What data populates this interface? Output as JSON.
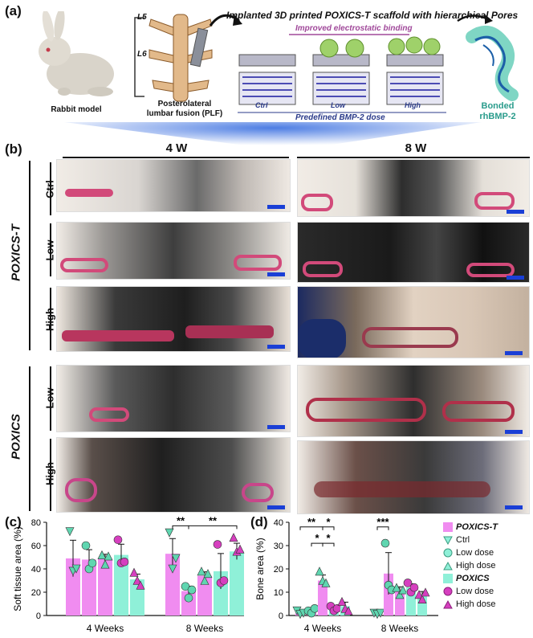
{
  "panel_a": {
    "label": "(a)",
    "title": "Implanted 3D printed POXICS-T scaffold with hierarchical Pores",
    "electrostatic": "Improved electrostatic binding",
    "rabbit_caption": "Rabbit model",
    "plf_caption_line1": "Posterolateral",
    "plf_caption_line2": "lumbar fusion (PLF)",
    "vertebra_l5": "L5",
    "vertebra_l6": "L6",
    "doses": [
      "Ctrl",
      "Low",
      "High"
    ],
    "dose_caption": "Predefined BMP-2 dose",
    "bmp_line1": "Bonded",
    "bmp_line2": "rhBMP-2"
  },
  "panel_b": {
    "label": "(b)",
    "weeks": [
      "4 W",
      "8 W"
    ],
    "groups": [
      "POXICS-T",
      "POXICS"
    ],
    "rows_poxics_t": [
      "Ctrl",
      "Low",
      "High"
    ],
    "rows_poxics": [
      "Low",
      "High"
    ]
  },
  "panel_c": {
    "label": "(c)"
  },
  "panel_d": {
    "label": "(d)"
  },
  "legend": {
    "group1": "POXICS-T",
    "group1_items": [
      "Ctrl",
      "Low dose",
      "High dose"
    ],
    "group2": "POXICS",
    "group2_items": [
      "Low dose",
      "High dose"
    ]
  },
  "colors": {
    "pink": "#f08cf0",
    "teal": "#8ff0d8",
    "pink_marker": "#d63fbf",
    "teal_marker": "#5fd6b0",
    "scale_bar": "#1a3fd6"
  },
  "chart_data": [
    {
      "type": "bar",
      "title": "",
      "xlabel": "",
      "ylabel": "Soft tissue area (%)",
      "ylim": [
        0,
        80
      ],
      "yticks": [
        "0",
        "20",
        "40",
        "60",
        "80"
      ],
      "categories": [
        "4 Weeks",
        "8 Weeks"
      ],
      "series": [
        {
          "name": "POXICS-T Ctrl",
          "values": [
            49,
            53
          ],
          "points": [
            [
              72,
              38,
              40
            ],
            [
              71,
              40,
              49
            ]
          ]
        },
        {
          "name": "POXICS-T Low dose",
          "values": [
            48,
            21
          ],
          "points": [
            [
              60,
              40,
              45
            ],
            [
              25,
              15,
              22
            ]
          ]
        },
        {
          "name": "POXICS-T High dose",
          "values": [
            49,
            34
          ],
          "points": [
            [
              52,
              44,
              51
            ],
            [
              38,
              30,
              36
            ]
          ]
        },
        {
          "name": "POXICS Low dose",
          "values": [
            52,
            38
          ],
          "points": [
            [
              65,
              45,
              46
            ],
            [
              61,
              28,
              30
            ]
          ]
        },
        {
          "name": "POXICS High dose",
          "values": [
            31,
            55
          ],
          "points": [
            [
              37,
              30,
              26
            ],
            [
              67,
              55,
              57
            ]
          ]
        }
      ],
      "significance": [
        {
          "label": "**",
          "between": [
            "8 Weeks POXICS-T Ctrl",
            "8 Weeks POXICS-T Low dose"
          ]
        },
        {
          "label": "**",
          "between": [
            "8 Weeks POXICS-T Low dose",
            "8 Weeks POXICS High dose"
          ]
        }
      ]
    },
    {
      "type": "bar",
      "title": "",
      "xlabel": "",
      "ylabel": "Bone area (%)",
      "ylim": [
        0,
        40
      ],
      "yticks": [
        "0",
        "10",
        "20",
        "30",
        "40"
      ],
      "categories": [
        "4 Weeks",
        "8 Weeks"
      ],
      "series": [
        {
          "name": "POXICS-T Ctrl",
          "values": [
            1,
            1
          ],
          "points": [
            [
              2,
              0.5,
              1
            ],
            [
              1,
              0.5,
              1
            ]
          ]
        },
        {
          "name": "POXICS-T Low dose",
          "values": [
            2,
            18
          ],
          "points": [
            [
              2,
              1,
              3
            ],
            [
              31,
              13,
              11
            ]
          ]
        },
        {
          "name": "POXICS-T High dose",
          "values": [
            15,
            11
          ],
          "points": [
            [
              19,
              15,
              14
            ],
            [
              12,
              9,
              11
            ]
          ]
        },
        {
          "name": "POXICS Low dose",
          "values": [
            3,
            12
          ],
          "points": [
            [
              4,
              2,
              3
            ],
            [
              14,
              10,
              12
            ]
          ]
        },
        {
          "name": "POXICS High dose",
          "values": [
            4,
            9
          ],
          "points": [
            [
              6,
              3,
              2
            ],
            [
              9,
              7,
              10
            ]
          ]
        }
      ],
      "significance": [
        {
          "label": "**",
          "between": [
            "4 Weeks POXICS-T Ctrl",
            "4 Weeks POXICS-T High dose"
          ]
        },
        {
          "label": "*",
          "between": [
            "4 Weeks POXICS-T High dose",
            "4 Weeks POXICS High dose"
          ]
        },
        {
          "label": "*",
          "between": [
            "4 Weeks POXICS-T Low dose",
            "4 Weeks POXICS-T High dose"
          ]
        },
        {
          "label": "*",
          "between": [
            "4 Weeks POXICS-T High dose",
            "4 Weeks POXICS Low dose"
          ]
        },
        {
          "label": "***",
          "between": [
            "8 Weeks POXICS-T Ctrl",
            "8 Weeks POXICS-T Low dose"
          ]
        }
      ]
    }
  ]
}
